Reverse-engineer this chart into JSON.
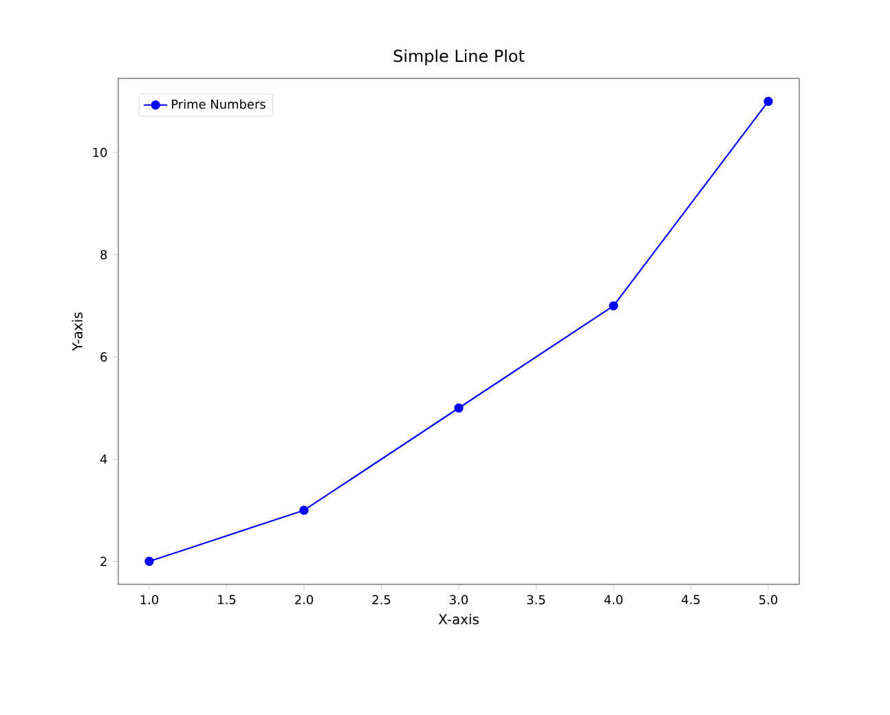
{
  "chart_data": {
    "type": "line",
    "title": "Simple Line Plot",
    "xlabel": "X-axis",
    "ylabel": "Y-axis",
    "x": [
      1,
      2,
      3,
      4,
      5
    ],
    "series": [
      {
        "name": "Prime Numbers",
        "color": "#0000ff",
        "values": [
          2,
          3,
          5,
          7,
          11
        ]
      }
    ],
    "xlim": [
      0.8,
      5.2
    ],
    "ylim": [
      1.55,
      11.45
    ],
    "xticks": [
      {
        "value": 1,
        "label": "1.0"
      },
      1.5,
      {
        "value": 2,
        "label": "2.0"
      },
      2.5,
      {
        "value": 3,
        "label": "3.0"
      },
      3.5,
      {
        "value": 4,
        "label": "4.0"
      },
      4.5,
      {
        "value": 5,
        "label": "5.0"
      }
    ],
    "yticks": [
      2,
      4,
      6,
      8,
      10
    ],
    "legend": "top left",
    "marker": "circle",
    "line_style": "solid",
    "grid": false
  }
}
